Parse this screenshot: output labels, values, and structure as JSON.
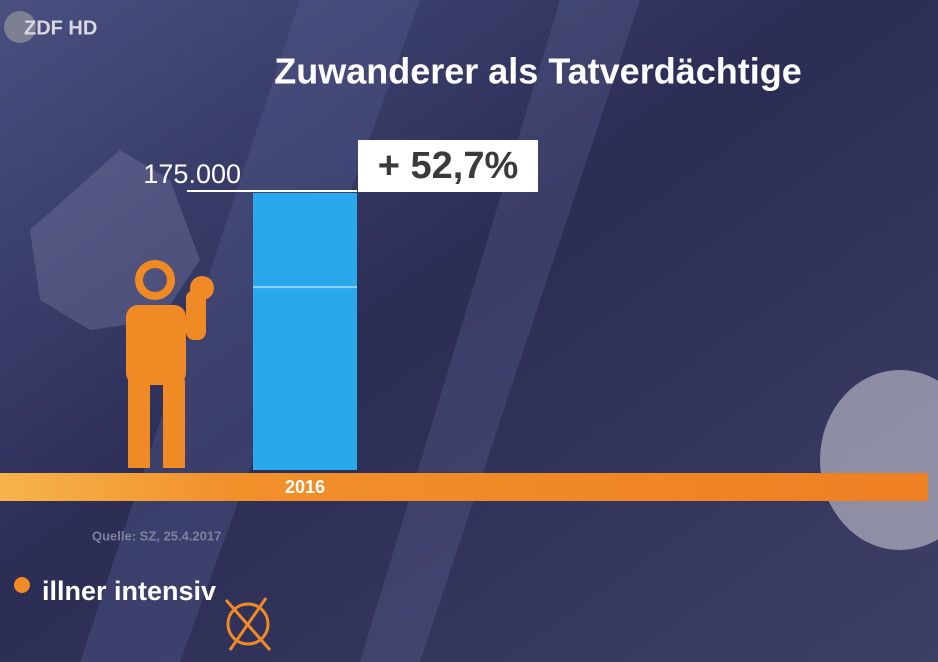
{
  "chart_data": {
    "type": "bar",
    "title": "Zuwanderer als Tatverdächtige",
    "categories": [
      "2016"
    ],
    "values": [
      175000
    ],
    "value_labels": [
      "175.000"
    ],
    "color": "#29a8ec",
    "annotation": "+ 52,7%",
    "source": "Quelle: SZ, 25.4.2017",
    "logo": "ZDF HD",
    "branding": "illner intensiv"
  }
}
